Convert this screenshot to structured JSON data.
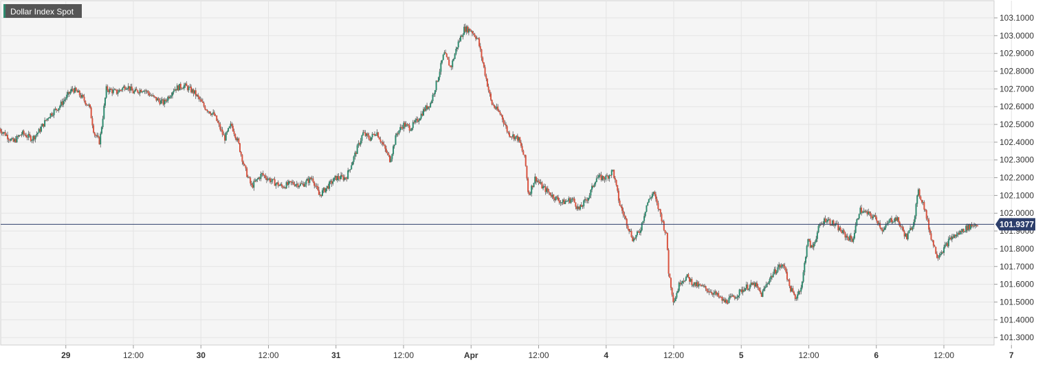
{
  "title": "Dollar Index Spot",
  "current_price_label": "101.9377",
  "colors": {
    "background": "#f5f5f5",
    "grid": "#e4e4e4",
    "up": "#2d8a6e",
    "down": "#d9533f",
    "price_line": "#2c3e6b",
    "badge": "#2c3e6b",
    "title_badge": "#555555"
  },
  "chart_data": {
    "type": "candlestick",
    "title": "Dollar Index Spot",
    "ylim": [
      101.25,
      103.2
    ],
    "y_ticks": [
      "103.1000",
      "103.0000",
      "102.9000",
      "102.8000",
      "102.7000",
      "102.6000",
      "102.5000",
      "102.4000",
      "102.3000",
      "102.2000",
      "102.1000",
      "102.0000",
      "101.9000",
      "101.8000",
      "101.7000",
      "101.6000",
      "101.5000",
      "101.4000",
      "101.3000"
    ],
    "x_ticks": [
      "29",
      "12:00",
      "30",
      "12:00",
      "31",
      "12:00",
      "Apr",
      "12:00",
      "4",
      "12:00",
      "5",
      "12:00",
      "6",
      "12:00",
      "7"
    ],
    "x_tick_index": [
      0.5,
      1.5,
      2.5,
      3.5,
      4.5,
      5.5,
      6.5,
      7.5,
      8.5,
      9.5,
      10.5,
      11.5,
      12.5,
      13.5,
      14.5
    ],
    "current_price": 101.9377,
    "path_points": [
      [
        0.0,
        102.48
      ],
      [
        0.12,
        102.44
      ],
      [
        0.22,
        102.4
      ],
      [
        0.35,
        102.45
      ],
      [
        0.5,
        102.42
      ],
      [
        0.6,
        102.46
      ],
      [
        0.75,
        102.55
      ],
      [
        0.9,
        102.6
      ],
      [
        1.0,
        102.65
      ],
      [
        1.1,
        102.7
      ],
      [
        1.2,
        102.67
      ],
      [
        1.35,
        102.6
      ],
      [
        1.42,
        102.45
      ],
      [
        1.5,
        102.4
      ],
      [
        1.6,
        102.7
      ],
      [
        1.75,
        102.68
      ],
      [
        1.9,
        102.72
      ],
      [
        2.0,
        102.68
      ],
      [
        2.15,
        102.7
      ],
      [
        2.3,
        102.65
      ],
      [
        2.45,
        102.62
      ],
      [
        2.6,
        102.7
      ],
      [
        2.75,
        102.72
      ],
      [
        2.9,
        102.68
      ],
      [
        3.05,
        102.6
      ],
      [
        3.2,
        102.55
      ],
      [
        3.35,
        102.42
      ],
      [
        3.45,
        102.5
      ],
      [
        3.55,
        102.4
      ],
      [
        3.65,
        102.25
      ],
      [
        3.75,
        102.15
      ],
      [
        3.9,
        102.22
      ],
      [
        4.05,
        102.18
      ],
      [
        4.2,
        102.15
      ],
      [
        4.35,
        102.17
      ],
      [
        4.5,
        102.16
      ],
      [
        4.65,
        102.2
      ],
      [
        4.75,
        102.1
      ],
      [
        4.85,
        102.14
      ],
      [
        5.0,
        102.2
      ],
      [
        5.15,
        102.2
      ],
      [
        5.3,
        102.35
      ],
      [
        5.4,
        102.45
      ],
      [
        5.5,
        102.42
      ],
      [
        5.6,
        102.46
      ],
      [
        5.7,
        102.38
      ],
      [
        5.8,
        102.3
      ],
      [
        5.9,
        102.45
      ],
      [
        6.0,
        102.5
      ],
      [
        6.1,
        102.48
      ],
      [
        6.2,
        102.52
      ],
      [
        6.3,
        102.58
      ],
      [
        6.4,
        102.62
      ],
      [
        6.5,
        102.75
      ],
      [
        6.6,
        102.9
      ],
      [
        6.7,
        102.82
      ],
      [
        6.8,
        102.95
      ],
      [
        6.9,
        103.04
      ],
      [
        7.0,
        103.03
      ],
      [
        7.1,
        102.98
      ],
      [
        7.2,
        102.8
      ],
      [
        7.3,
        102.62
      ],
      [
        7.45,
        102.55
      ],
      [
        7.55,
        102.45
      ],
      [
        7.7,
        102.42
      ],
      [
        7.8,
        102.3
      ],
      [
        7.85,
        102.1
      ],
      [
        7.95,
        102.2
      ],
      [
        8.05,
        102.15
      ],
      [
        8.2,
        102.1
      ],
      [
        8.35,
        102.06
      ],
      [
        8.5,
        102.08
      ],
      [
        8.6,
        102.02
      ],
      [
        8.75,
        102.1
      ],
      [
        8.85,
        102.2
      ],
      [
        9.0,
        102.2
      ],
      [
        9.1,
        102.24
      ],
      [
        9.2,
        102.05
      ],
      [
        9.3,
        101.95
      ],
      [
        9.4,
        101.85
      ],
      [
        9.5,
        101.9
      ],
      [
        9.6,
        102.05
      ],
      [
        9.7,
        102.12
      ],
      [
        9.75,
        102.05
      ],
      [
        9.8,
        102.0
      ],
      [
        9.9,
        101.86
      ],
      [
        9.92,
        101.68
      ],
      [
        10.0,
        101.5
      ],
      [
        10.1,
        101.62
      ],
      [
        10.2,
        101.64
      ],
      [
        10.3,
        101.6
      ],
      [
        10.45,
        101.58
      ],
      [
        10.6,
        101.55
      ],
      [
        10.75,
        101.5
      ],
      [
        10.9,
        101.53
      ],
      [
        11.05,
        101.58
      ],
      [
        11.2,
        101.6
      ],
      [
        11.3,
        101.54
      ],
      [
        11.4,
        101.62
      ],
      [
        11.55,
        101.7
      ],
      [
        11.65,
        101.7
      ],
      [
        11.7,
        101.6
      ],
      [
        11.8,
        101.52
      ],
      [
        11.9,
        101.6
      ],
      [
        11.98,
        101.85
      ],
      [
        12.05,
        101.8
      ],
      [
        12.15,
        101.92
      ],
      [
        12.25,
        101.97
      ],
      [
        12.4,
        101.93
      ],
      [
        12.55,
        101.87
      ],
      [
        12.65,
        101.85
      ],
      [
        12.75,
        102.02
      ],
      [
        12.85,
        102.0
      ],
      [
        13.0,
        101.97
      ],
      [
        13.1,
        101.9
      ],
      [
        13.2,
        101.96
      ],
      [
        13.3,
        101.97
      ],
      [
        13.45,
        101.86
      ],
      [
        13.55,
        101.95
      ],
      [
        13.62,
        102.12
      ],
      [
        13.7,
        102.05
      ],
      [
        13.8,
        101.88
      ],
      [
        13.9,
        101.76
      ],
      [
        14.0,
        101.8
      ],
      [
        14.1,
        101.86
      ],
      [
        14.2,
        101.88
      ],
      [
        14.3,
        101.91
      ],
      [
        14.4,
        101.93
      ],
      [
        14.5,
        101.94
      ]
    ]
  }
}
